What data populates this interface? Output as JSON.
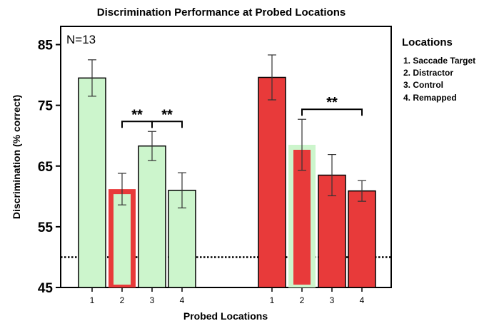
{
  "chart_data": {
    "type": "bar",
    "title": "Discrimination Performance at Probed Locations",
    "xlabel": "Probed Locations",
    "ylabel": "Discrimination (% correct)",
    "ylim": [
      45,
      88
    ],
    "yticks": [
      45,
      55,
      65,
      75,
      85
    ],
    "chance_level": 50,
    "annotation": "N=13",
    "colors": {
      "green": "#ccf5cc",
      "red": "#e83a3a",
      "chance_line": "#000000"
    },
    "groups": [
      {
        "categories": [
          "1",
          "2",
          "3",
          "4"
        ],
        "bars": [
          {
            "label": "1",
            "value": 79.5,
            "error": 3.0,
            "fill": "#ccf5cc",
            "outline": "#000000"
          },
          {
            "label": "2",
            "value": 61.2,
            "error": 2.6,
            "fill": "#ccf5cc",
            "outline": "#e83a3a"
          },
          {
            "label": "3",
            "value": 68.3,
            "error": 2.4,
            "fill": "#ccf5cc",
            "outline": "#000000"
          },
          {
            "label": "4",
            "value": 61.0,
            "error": 2.9,
            "fill": "#ccf5cc",
            "outline": "#000000"
          }
        ],
        "significance": [
          {
            "from": 1,
            "to": 2,
            "label": "**"
          },
          {
            "from": 2,
            "to": 3,
            "label": "**"
          }
        ]
      },
      {
        "categories": [
          "1",
          "2",
          "3",
          "4"
        ],
        "bars": [
          {
            "label": "1",
            "value": 79.6,
            "error": 3.7,
            "fill": "#e83a3a",
            "outline": "#000000"
          },
          {
            "label": "2",
            "value": 68.5,
            "error": 4.2,
            "fill": "#e83a3a",
            "outline": "#ccf5cc"
          },
          {
            "label": "3",
            "value": 63.5,
            "error": 3.4,
            "fill": "#e83a3a",
            "outline": "#000000"
          },
          {
            "label": "4",
            "value": 60.9,
            "error": 1.7,
            "fill": "#e83a3a",
            "outline": "#000000"
          }
        ],
        "significance": [
          {
            "from": 1,
            "to": 3,
            "label": "**"
          }
        ]
      }
    ],
    "legend": {
      "title": "Locations",
      "placement": "right",
      "items": [
        "1. Saccade Target",
        "2. Distractor",
        "3. Control",
        "4. Remapped"
      ]
    }
  }
}
